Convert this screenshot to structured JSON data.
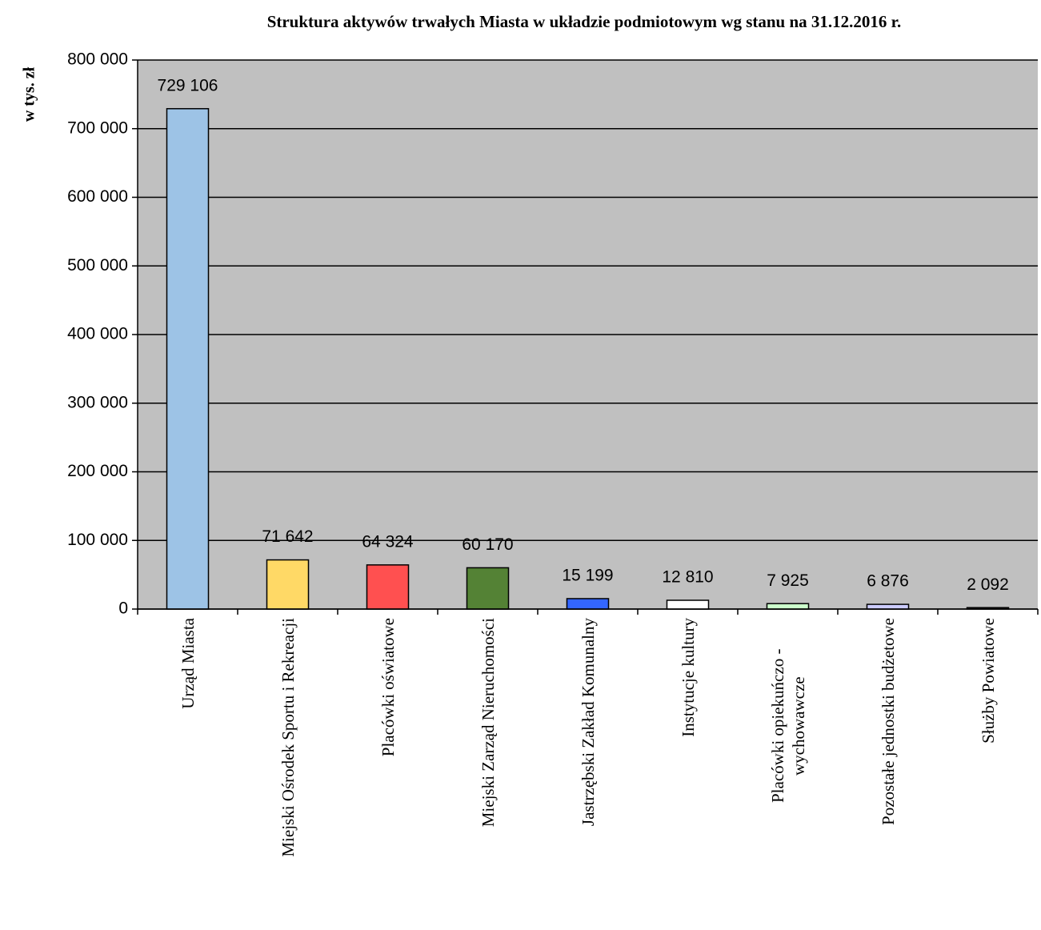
{
  "chart_data": {
    "type": "bar",
    "title": "Struktura aktywów trwałych Miasta w układzie podmiotowym wg stanu na 31.12.2016 r.",
    "y_label": "w tys. zł",
    "categories": [
      "Urząd Miasta",
      "Miejski Ośrodek Sportu i Rekreacji",
      "Placówki oświatowe",
      "Miejski Zarząd Nieruchomości",
      "Jastrzębski Zakład Komunalny",
      "Instytucje kultury",
      "Placówki opiekuńczo - wychowawcze",
      "Pozostałe jednostki budżetowe",
      "Służby Powiatowe"
    ],
    "values": [
      729106,
      71642,
      64324,
      60170,
      15199,
      12810,
      7925,
      6876,
      2092
    ],
    "value_labels": [
      "729 106",
      "71 642",
      "64 324",
      "60 170",
      "15 199",
      "12 810",
      "7 925",
      "6 876",
      "2 092"
    ],
    "colors": [
      "#9dc3e6",
      "#ffd966",
      "#ff5050",
      "#548235",
      "#3366ff",
      "#ffffff",
      "#ccffcc",
      "#ccccff",
      "#333333"
    ],
    "ylim": [
      0,
      800000
    ],
    "yticks": [
      0,
      {
        "value": 100000,
        "label": "100 000"
      },
      {
        "value": 200000,
        "label": "200 000"
      },
      {
        "value": 300000,
        "label": "300 000"
      },
      {
        "value": 400000,
        "label": "400 000"
      },
      {
        "value": 500000,
        "label": "500 000"
      },
      {
        "value": 600000,
        "label": "600 000"
      },
      {
        "value": 700000,
        "label": "700 000"
      },
      {
        "value": 800000,
        "label": "800 000"
      }
    ],
    "grid": true,
    "plot_background": "#c0c0c0"
  }
}
